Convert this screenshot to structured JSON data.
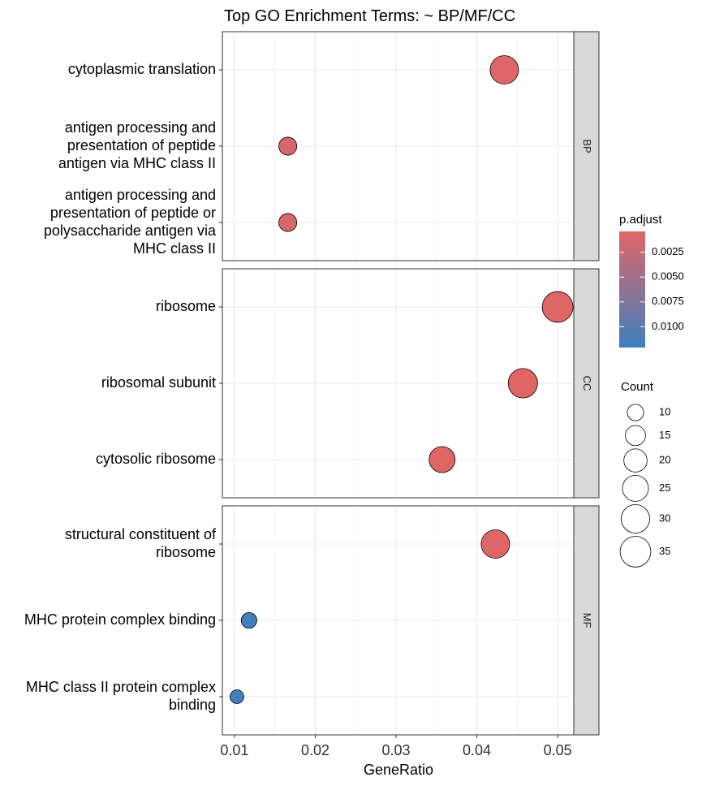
{
  "chart_data": {
    "type": "scatter",
    "title": "Top GO Enrichment Terms: ~ BP/MF/CC",
    "xlabel": "GeneRatio",
    "ylabel": "",
    "xlim": [
      0.0085,
      0.052
    ],
    "x_ticks": [
      "0.01",
      "0.02",
      "0.03",
      "0.04",
      "0.05"
    ],
    "grid": true,
    "panels": [
      {
        "name": "BP",
        "terms": [
          {
            "label": [
              "cytoplasmic translation"
            ],
            "gene_ratio": 0.0434,
            "count": 30,
            "p_adjust": 0.0005
          },
          {
            "label": [
              "antigen processing and",
              "presentation of peptide",
              "antigen via MHC class II"
            ],
            "gene_ratio": 0.0166,
            "count": 12,
            "p_adjust": 0.001
          },
          {
            "label": [
              "antigen processing and",
              "presentation of peptide or",
              "polysaccharide antigen via",
              "MHC class II"
            ],
            "gene_ratio": 0.0166,
            "count": 12,
            "p_adjust": 0.001
          }
        ]
      },
      {
        "name": "CC",
        "terms": [
          {
            "label": [
              "ribosome"
            ],
            "gene_ratio": 0.05,
            "count": 35,
            "p_adjust": 0.0004
          },
          {
            "label": [
              "ribosomal subunit"
            ],
            "gene_ratio": 0.0457,
            "count": 32,
            "p_adjust": 0.0004
          },
          {
            "label": [
              "cytosolic ribosome"
            ],
            "gene_ratio": 0.0357,
            "count": 25,
            "p_adjust": 0.0004
          }
        ]
      },
      {
        "name": "MF",
        "terms": [
          {
            "label": [
              "structural constituent of",
              "ribosome"
            ],
            "gene_ratio": 0.0423,
            "count": 30,
            "p_adjust": 0.0005
          },
          {
            "label": [
              "MHC protein complex binding"
            ],
            "gene_ratio": 0.0118,
            "count": 9,
            "p_adjust": 0.0118
          },
          {
            "label": [
              "MHC class II protein complex",
              "binding"
            ],
            "gene_ratio": 0.0103,
            "count": 7,
            "p_adjust": 0.0118
          }
        ]
      }
    ],
    "legend_color": {
      "title": "p.adjust",
      "range": [
        0.0004,
        0.0121
      ],
      "ticks": [
        0.0025,
        0.005,
        0.0075,
        0.01
      ],
      "tick_labels": [
        "0.0025",
        "0.0050",
        "0.0075",
        "0.0100"
      ],
      "low_color": "#e06666",
      "high_color": "#3f7fbf"
    },
    "legend_size": {
      "title": "Count",
      "values": [
        10,
        15,
        20,
        25,
        30,
        35
      ]
    },
    "legend_placement": "right"
  }
}
